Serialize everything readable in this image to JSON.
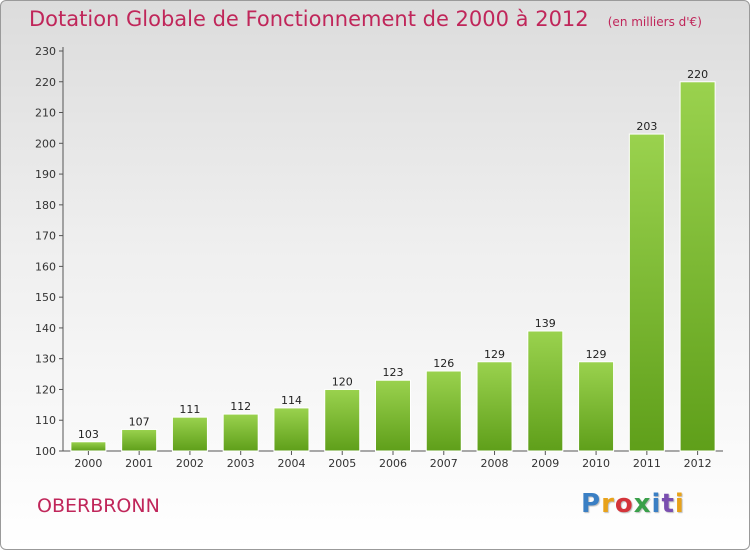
{
  "chart_data": {
    "type": "bar",
    "title": "Dotation Globale de Fonctionnement de 2000 à 2012",
    "unit_label": "(en milliers d'€)",
    "categories": [
      "2000",
      "2001",
      "2002",
      "2003",
      "2004",
      "2005",
      "2006",
      "2007",
      "2008",
      "2009",
      "2010",
      "2011",
      "2012"
    ],
    "values": [
      103,
      107,
      111,
      112,
      114,
      120,
      123,
      126,
      129,
      139,
      129,
      203,
      220
    ],
    "ylim": [
      100,
      230
    ],
    "yticks": [
      100,
      110,
      120,
      130,
      140,
      150,
      160,
      170,
      180,
      190,
      200,
      210,
      220,
      230
    ],
    "grid": false,
    "bar_color": "#7cc231"
  },
  "commune": "OBERBRONN",
  "logo": {
    "text": "Proxiti",
    "letter_colors": [
      "#3a7fc4",
      "#e8a21a",
      "#d4343a",
      "#3aa04a",
      "#3a7fc4",
      "#7a4fb0",
      "#e8a21a"
    ]
  }
}
